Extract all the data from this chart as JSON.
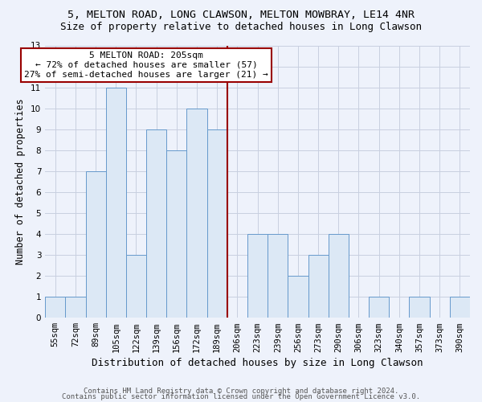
{
  "title": "5, MELTON ROAD, LONG CLAWSON, MELTON MOWBRAY, LE14 4NR",
  "subtitle": "Size of property relative to detached houses in Long Clawson",
  "xlabel": "Distribution of detached houses by size in Long Clawson",
  "ylabel": "Number of detached properties",
  "bar_color": "#dce8f5",
  "bar_edge_color": "#6699cc",
  "categories": [
    "55sqm",
    "72sqm",
    "89sqm",
    "105sqm",
    "122sqm",
    "139sqm",
    "156sqm",
    "172sqm",
    "189sqm",
    "206sqm",
    "223sqm",
    "239sqm",
    "256sqm",
    "273sqm",
    "290sqm",
    "306sqm",
    "323sqm",
    "340sqm",
    "357sqm",
    "373sqm",
    "390sqm"
  ],
  "values": [
    1,
    1,
    7,
    11,
    3,
    9,
    8,
    10,
    9,
    0,
    4,
    4,
    2,
    3,
    4,
    0,
    1,
    0,
    1,
    0,
    1
  ],
  "annotation_line1": "5 MELTON ROAD: 205sqm",
  "annotation_line2": "← 72% of detached houses are smaller (57)",
  "annotation_line3": "27% of semi-detached houses are larger (21) →",
  "vline_color": "#990000",
  "annotation_box_color": "#ffffff",
  "annotation_box_edge": "#990000",
  "ylim": [
    0,
    13
  ],
  "yticks": [
    0,
    1,
    2,
    3,
    4,
    5,
    6,
    7,
    8,
    9,
    10,
    11,
    12,
    13
  ],
  "footer1": "Contains HM Land Registry data © Crown copyright and database right 2024.",
  "footer2": "Contains public sector information licensed under the Open Government Licence v3.0.",
  "bg_color": "#eef2fb",
  "grid_color": "#c8cfe0",
  "title_fontsize": 9.5,
  "subtitle_fontsize": 9,
  "tick_fontsize": 7.5,
  "ylabel_fontsize": 8.5,
  "xlabel_fontsize": 9,
  "annotation_fontsize": 8,
  "footer_fontsize": 6.5
}
